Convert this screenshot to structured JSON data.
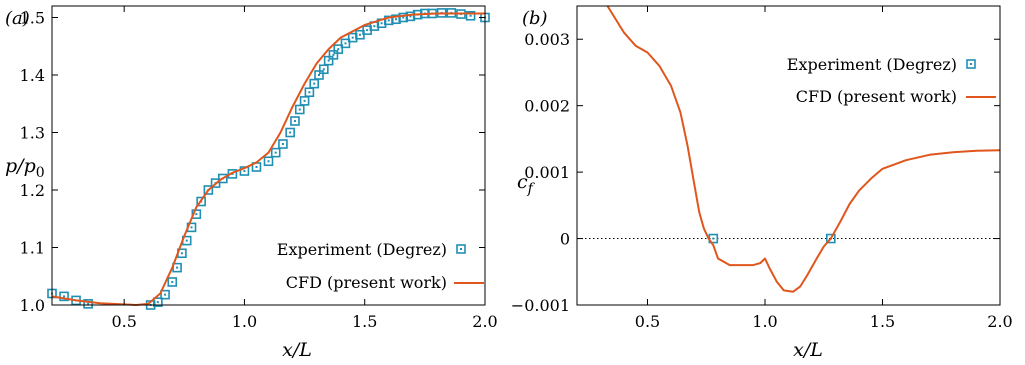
{
  "colors": {
    "experiment_marker": "#1f8fb4",
    "cfd_line": "#e0561c",
    "axis": "#000000"
  },
  "chart_data": [
    {
      "type": "line",
      "panel_label": "(a)",
      "xlabel": "x/L",
      "ylabel_main": "p/p",
      "ylabel_sub": "0",
      "xlim": [
        0.2,
        2.0
      ],
      "ylim": [
        1.0,
        1.52
      ],
      "xticks": [
        0.5,
        1.0,
        1.5,
        2.0
      ],
      "xtick_labels": [
        "0.5",
        "1.0",
        "1.5",
        "2.0"
      ],
      "yticks": [
        1.0,
        1.1,
        1.2,
        1.3,
        1.4,
        1.5
      ],
      "ytick_labels": [
        "1.0",
        "1.1",
        "1.2",
        "1.3",
        "1.4",
        "1.5"
      ],
      "grid": false,
      "legend_position": "bottom-right",
      "series": [
        {
          "name": "Experiment (Degrez)",
          "kind": "marker",
          "x": [
            0.2,
            0.25,
            0.3,
            0.35,
            0.61,
            0.64,
            0.67,
            0.7,
            0.72,
            0.74,
            0.76,
            0.78,
            0.8,
            0.82,
            0.85,
            0.88,
            0.91,
            0.95,
            1.0,
            1.05,
            1.1,
            1.13,
            1.16,
            1.19,
            1.21,
            1.23,
            1.25,
            1.27,
            1.29,
            1.31,
            1.33,
            1.35,
            1.37,
            1.39,
            1.42,
            1.45,
            1.48,
            1.51,
            1.54,
            1.57,
            1.6,
            1.63,
            1.66,
            1.69,
            1.72,
            1.75,
            1.78,
            1.82,
            1.86,
            1.9,
            1.94,
            2.0
          ],
          "y": [
            1.02,
            1.015,
            1.008,
            1.002,
            1.0,
            1.005,
            1.018,
            1.04,
            1.065,
            1.09,
            1.112,
            1.135,
            1.158,
            1.18,
            1.2,
            1.212,
            1.22,
            1.228,
            1.233,
            1.24,
            1.25,
            1.265,
            1.28,
            1.3,
            1.32,
            1.34,
            1.355,
            1.37,
            1.385,
            1.4,
            1.41,
            1.425,
            1.435,
            1.445,
            1.455,
            1.465,
            1.47,
            1.478,
            1.485,
            1.49,
            1.495,
            1.497,
            1.5,
            1.502,
            1.505,
            1.507,
            1.507,
            1.508,
            1.508,
            1.506,
            1.503,
            1.5
          ]
        },
        {
          "name": "CFD (present work)",
          "kind": "line",
          "x": [
            0.2,
            0.3,
            0.4,
            0.5,
            0.55,
            0.6,
            0.65,
            0.7,
            0.75,
            0.8,
            0.85,
            0.9,
            0.95,
            1.0,
            1.05,
            1.1,
            1.15,
            1.2,
            1.25,
            1.3,
            1.35,
            1.4,
            1.5,
            1.6,
            1.7,
            1.8,
            1.9,
            2.0
          ],
          "y": [
            1.015,
            1.008,
            1.003,
            1.001,
            1.0,
            1.002,
            1.02,
            1.065,
            1.12,
            1.17,
            1.2,
            1.218,
            1.23,
            1.238,
            1.248,
            1.265,
            1.3,
            1.345,
            1.385,
            1.42,
            1.445,
            1.465,
            1.487,
            1.5,
            1.505,
            1.507,
            1.507,
            1.507
          ]
        }
      ]
    },
    {
      "type": "line",
      "panel_label": "(b)",
      "xlabel": "x/L",
      "ylabel_main": "c",
      "ylabel_sub": "f",
      "xlim": [
        0.2,
        2.0
      ],
      "ylim": [
        -0.001,
        0.0035
      ],
      "xticks": [
        0.5,
        1.0,
        1.5,
        2.0
      ],
      "xtick_labels": [
        "0.5",
        "1.0",
        "1.5",
        "2.0"
      ],
      "yticks": [
        -0.001,
        0.0,
        0.001,
        0.002,
        0.003
      ],
      "ytick_labels": [
        "−0.001",
        "0",
        "0.001",
        "0.002",
        "0.003"
      ],
      "zero_line": true,
      "grid": false,
      "legend_position": "top-right",
      "series": [
        {
          "name": "Experiment (Degrez)",
          "kind": "marker",
          "x": [
            0.78,
            1.28
          ],
          "y": [
            0.0,
            0.0
          ]
        },
        {
          "name": "CFD (present work)",
          "kind": "line",
          "x": [
            0.33,
            0.4,
            0.45,
            0.5,
            0.55,
            0.6,
            0.64,
            0.67,
            0.7,
            0.72,
            0.74,
            0.76,
            0.78,
            0.8,
            0.85,
            0.9,
            0.95,
            0.98,
            1.0,
            1.02,
            1.05,
            1.08,
            1.12,
            1.15,
            1.18,
            1.22,
            1.25,
            1.28,
            1.32,
            1.36,
            1.4,
            1.45,
            1.5,
            1.6,
            1.7,
            1.8,
            1.9,
            2.0
          ],
          "y": [
            0.0035,
            0.0031,
            0.0029,
            0.0028,
            0.0026,
            0.0023,
            0.0019,
            0.0014,
            0.0008,
            0.0004,
            0.00015,
            0.0,
            -0.0001,
            -0.0003,
            -0.0004,
            -0.0004,
            -0.0004,
            -0.00037,
            -0.0003,
            -0.00045,
            -0.00065,
            -0.00078,
            -0.0008,
            -0.00072,
            -0.00055,
            -0.0003,
            -0.00012,
            0.0,
            0.00025,
            0.00052,
            0.00072,
            0.0009,
            0.00105,
            0.00118,
            0.00126,
            0.0013,
            0.00132,
            0.00133
          ]
        }
      ]
    }
  ]
}
